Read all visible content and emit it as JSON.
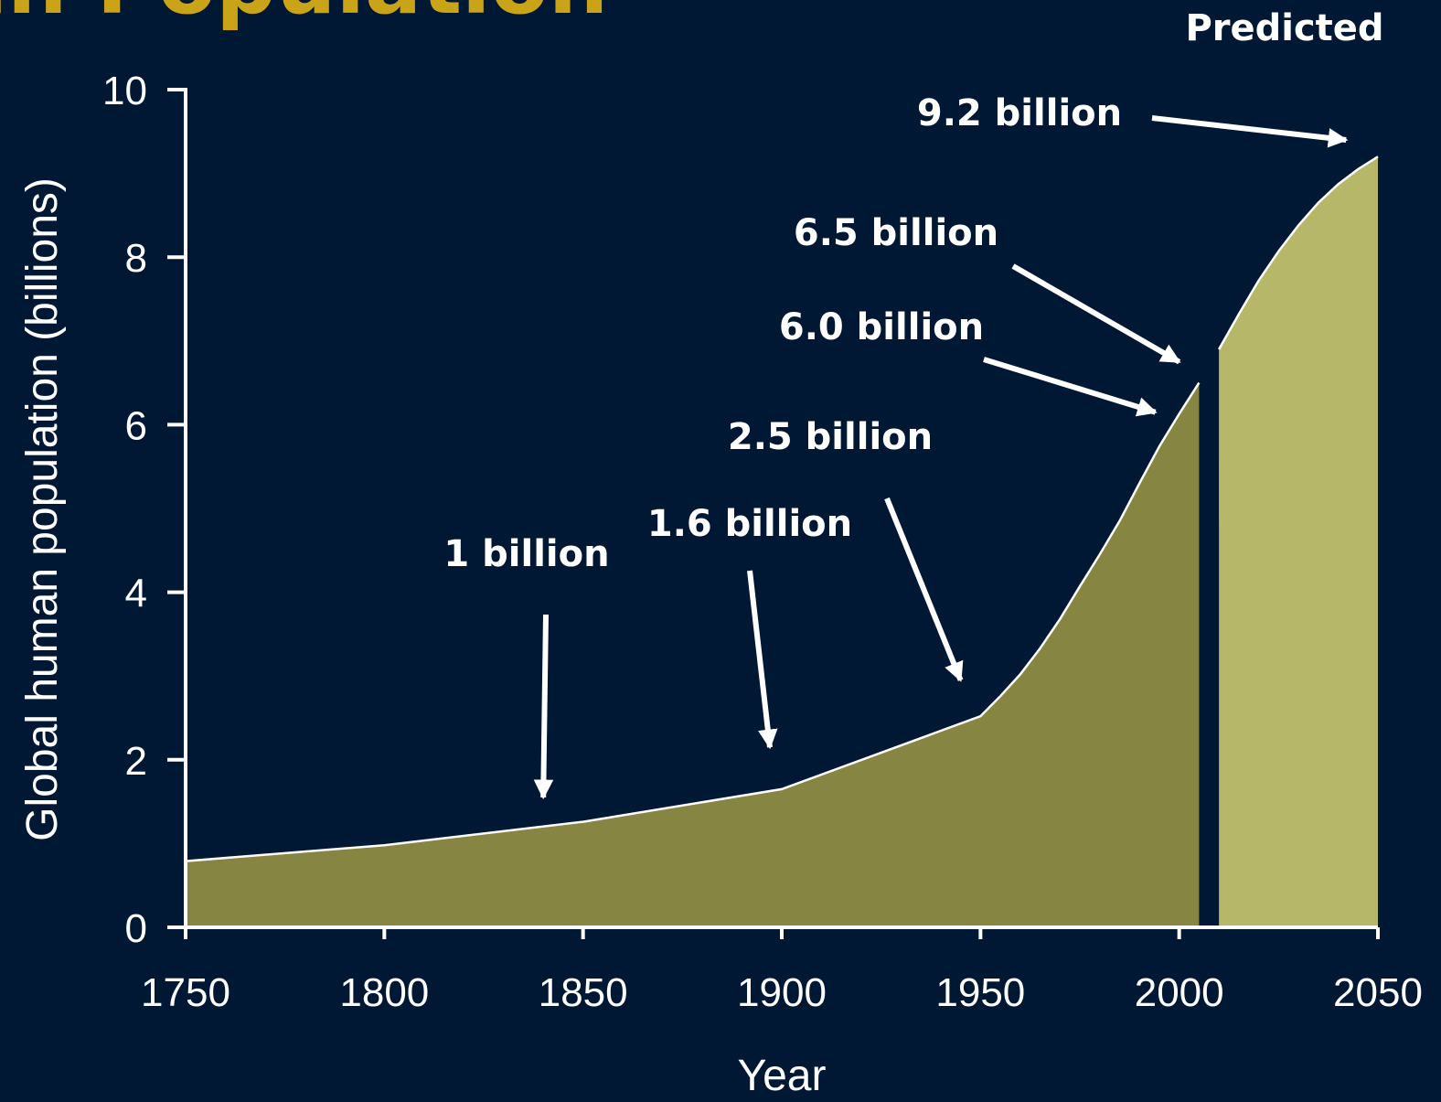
{
  "slide_title": "man Population",
  "predicted_label": "Predicted",
  "colors": {
    "background": "#001833",
    "historical_fill": "#868642",
    "predicted_fill": "#b7b76a",
    "axis": "#ffffff",
    "title": "#c9a418"
  },
  "chart_data": {
    "type": "area",
    "xlabel": "Year",
    "ylabel": "Global human population (billions)",
    "xlim": [
      1750,
      2050
    ],
    "ylim": [
      0,
      10
    ],
    "x_ticks": [
      "1750",
      "1800",
      "1850",
      "1900",
      "1950",
      "2000",
      "2050"
    ],
    "y_ticks": [
      "0",
      "2",
      "4",
      "6",
      "8",
      "10"
    ],
    "series": [
      {
        "name": "",
        "x": [
          1750,
          1800,
          1850,
          1900,
          1950,
          1955,
          1960,
          1965,
          1970,
          1975,
          1980,
          1985,
          1990,
          1995,
          2000,
          2005
        ],
        "y": [
          0.79,
          0.98,
          1.26,
          1.65,
          2.52,
          2.76,
          3.02,
          3.33,
          3.68,
          4.07,
          4.45,
          4.85,
          5.3,
          5.74,
          6.13,
          6.5
        ]
      },
      {
        "name": "Predicted",
        "x": [
          2010,
          2015,
          2020,
          2025,
          2030,
          2035,
          2040,
          2045,
          2050
        ],
        "y": [
          6.9,
          7.32,
          7.72,
          8.07,
          8.38,
          8.65,
          8.87,
          9.05,
          9.2
        ]
      }
    ],
    "annotations": [
      {
        "text": "1 billion",
        "target": [
          1840,
          1.55
        ]
      },
      {
        "text": "1.6 billion",
        "target": [
          1897,
          2.15
        ]
      },
      {
        "text": "2.5 billion",
        "target": [
          1945,
          2.95
        ]
      },
      {
        "text": "6.0 billion",
        "target": [
          1994,
          6.15
        ]
      },
      {
        "text": "6.5 billion",
        "target": [
          2000,
          6.75
        ]
      },
      {
        "text": "9.2 billion",
        "target": [
          2042,
          9.4
        ]
      }
    ]
  }
}
